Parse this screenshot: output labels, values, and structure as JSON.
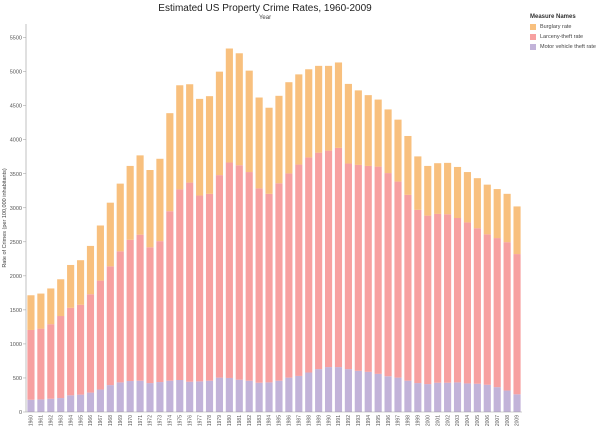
{
  "title": "Estimated US Property Crime Rates, 1960-2009",
  "chart_data": {
    "type": "bar",
    "stacked": true,
    "title": "Estimated US Property Crime Rates, 1960-2009",
    "subtitle": "Year",
    "xlabel": "",
    "ylabel": "Rate of Crimes (per 100,000 inhabitants)",
    "ylim": [
      0,
      5700
    ],
    "yticks": [
      0,
      500,
      1000,
      1500,
      2000,
      2500,
      3000,
      3500,
      4000,
      4500,
      5000,
      5500
    ],
    "grid": false,
    "legend_position": "right",
    "categories": [
      "1960",
      "1961",
      "1962",
      "1963",
      "1964",
      "1965",
      "1966",
      "1967",
      "1968",
      "1969",
      "1970",
      "1971",
      "1972",
      "1973",
      "1974",
      "1975",
      "1976",
      "1977",
      "1978",
      "1979",
      "1980",
      "1981",
      "1982",
      "1983",
      "1984",
      "1985",
      "1986",
      "1987",
      "1988",
      "1989",
      "1990",
      "1991",
      "1992",
      "1993",
      "1994",
      "1995",
      "1996",
      "1997",
      "1998",
      "1999",
      "2000",
      "2001",
      "2002",
      "2003",
      "2004",
      "2005",
      "2006",
      "2007",
      "2008",
      "2009"
    ],
    "series": [
      {
        "name": "Motor vehicle theft rate",
        "color": "#c2b3d9",
        "values": [
          180,
          185,
          195,
          205,
          245,
          255,
          285,
          330,
          395,
          435,
          455,
          460,
          425,
          440,
          460,
          470,
          445,
          450,
          460,
          505,
          500,
          475,
          460,
          430,
          435,
          460,
          505,
          530,
          580,
          630,
          660,
          660,
          630,
          605,
          590,
          560,
          525,
          505,
          460,
          425,
          410,
          430,
          430,
          435,
          420,
          415,
          400,
          365,
          315,
          260
        ]
      },
      {
        "name": "Larceny-theft rate",
        "color": "#f7a0a0",
        "values": [
          1025,
          1040,
          1095,
          1205,
          1285,
          1320,
          1445,
          1600,
          1745,
          1925,
          2075,
          2145,
          1995,
          2070,
          2490,
          2800,
          2925,
          2730,
          2745,
          2975,
          3165,
          3150,
          3065,
          2855,
          2770,
          2900,
          3000,
          3105,
          3160,
          3180,
          3180,
          3220,
          3020,
          3025,
          3025,
          3045,
          2985,
          2880,
          2730,
          2545,
          2475,
          2480,
          2475,
          2415,
          2365,
          2285,
          2210,
          2190,
          2180,
          2060
        ]
      },
      {
        "name": "Burglary rate",
        "color": "#f8c07e",
        "values": [
          510,
          515,
          525,
          540,
          630,
          655,
          710,
          810,
          935,
          995,
          1085,
          1165,
          1135,
          1210,
          1440,
          1530,
          1445,
          1420,
          1435,
          1520,
          1675,
          1645,
          1490,
          1335,
          1265,
          1285,
          1340,
          1325,
          1295,
          1275,
          1245,
          1255,
          1170,
          1095,
          1040,
          985,
          935,
          910,
          865,
          785,
          730,
          745,
          755,
          750,
          740,
          735,
          730,
          720,
          710,
          700
        ]
      }
    ]
  }
}
